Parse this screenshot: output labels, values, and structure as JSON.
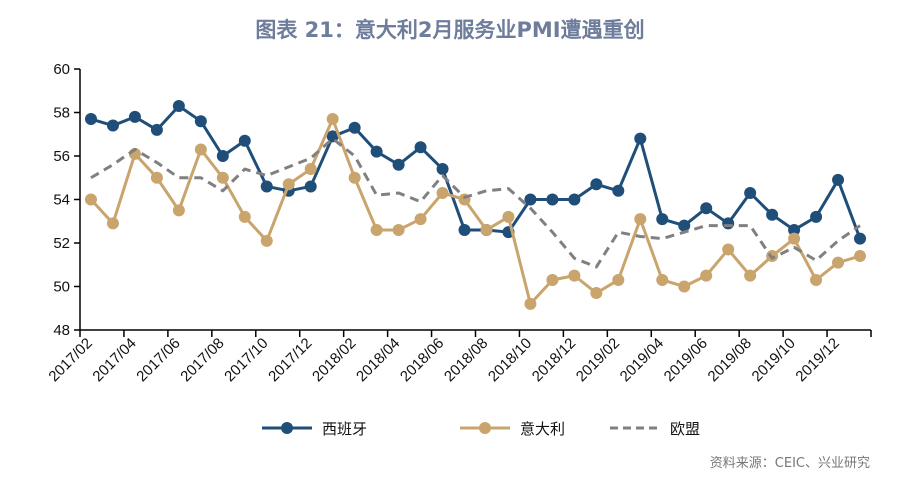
{
  "chart_data": {
    "type": "line",
    "title": "图表 21：意大利2月服务业PMI遭遇重创",
    "source": "资料来源：CEIC、兴业研究",
    "ylim": [
      48,
      60
    ],
    "yticks": [
      48,
      50,
      52,
      54,
      56,
      58,
      60
    ],
    "grid": false,
    "legend_position": "bottom",
    "x": [
      "2017/02",
      "2017/03",
      "2017/04",
      "2017/05",
      "2017/06",
      "2017/07",
      "2017/08",
      "2017/09",
      "2017/10",
      "2017/11",
      "2017/12",
      "2018/01",
      "2018/02",
      "2018/03",
      "2018/04",
      "2018/05",
      "2018/06",
      "2018/07",
      "2018/08",
      "2018/09",
      "2018/10",
      "2018/11",
      "2018/12",
      "2019/01",
      "2019/02",
      "2019/03",
      "2019/04",
      "2019/05",
      "2019/06",
      "2019/07",
      "2019/08",
      "2019/09",
      "2019/10",
      "2019/11",
      "2019/12",
      "2020/01"
    ],
    "xtick_labels": [
      "2017/02",
      "2017/04",
      "2017/06",
      "2017/08",
      "2017/10",
      "2017/12",
      "2018/02",
      "2018/04",
      "2018/06",
      "2018/08",
      "2018/10",
      "2018/12",
      "2019/02",
      "2019/04",
      "2019/06",
      "2019/08",
      "2019/10",
      "2019/12"
    ],
    "series": [
      {
        "name": "西班牙",
        "color": "#1f4e79",
        "style": "solid-marker",
        "values": [
          57.7,
          57.4,
          57.8,
          57.2,
          58.3,
          57.6,
          56.0,
          56.7,
          54.6,
          54.4,
          54.6,
          56.9,
          57.3,
          56.2,
          55.6,
          56.4,
          55.4,
          52.6,
          52.6,
          52.5,
          54.0,
          54.0,
          54.0,
          54.7,
          54.4,
          56.8,
          53.1,
          52.8,
          53.6,
          52.9,
          54.3,
          53.3,
          52.6,
          53.2,
          54.9,
          52.2
        ]
      },
      {
        "name": "意大利",
        "color": "#c9a46c",
        "style": "solid-marker",
        "values": [
          54.0,
          52.9,
          56.1,
          55.0,
          53.5,
          56.3,
          55.0,
          53.2,
          52.1,
          54.7,
          55.4,
          57.7,
          55.0,
          52.6,
          52.6,
          53.1,
          54.3,
          54.0,
          52.6,
          53.2,
          49.2,
          50.3,
          50.5,
          49.7,
          50.3,
          53.1,
          50.3,
          50.0,
          50.5,
          51.7,
          50.5,
          51.4,
          52.2,
          50.3,
          51.1,
          51.4
        ]
      },
      {
        "name": "欧盟",
        "color": "#808080",
        "style": "dashed",
        "values": [
          55.0,
          55.6,
          56.3,
          55.7,
          55.0,
          55.0,
          54.4,
          55.4,
          55.1,
          55.5,
          55.9,
          56.8,
          56.0,
          54.2,
          54.3,
          53.9,
          55.1,
          54.1,
          54.4,
          54.5,
          53.6,
          52.5,
          51.3,
          50.9,
          52.5,
          52.3,
          52.2,
          52.5,
          52.8,
          52.8,
          52.8,
          51.3,
          51.8,
          51.2,
          52.1,
          52.8
        ]
      }
    ]
  }
}
